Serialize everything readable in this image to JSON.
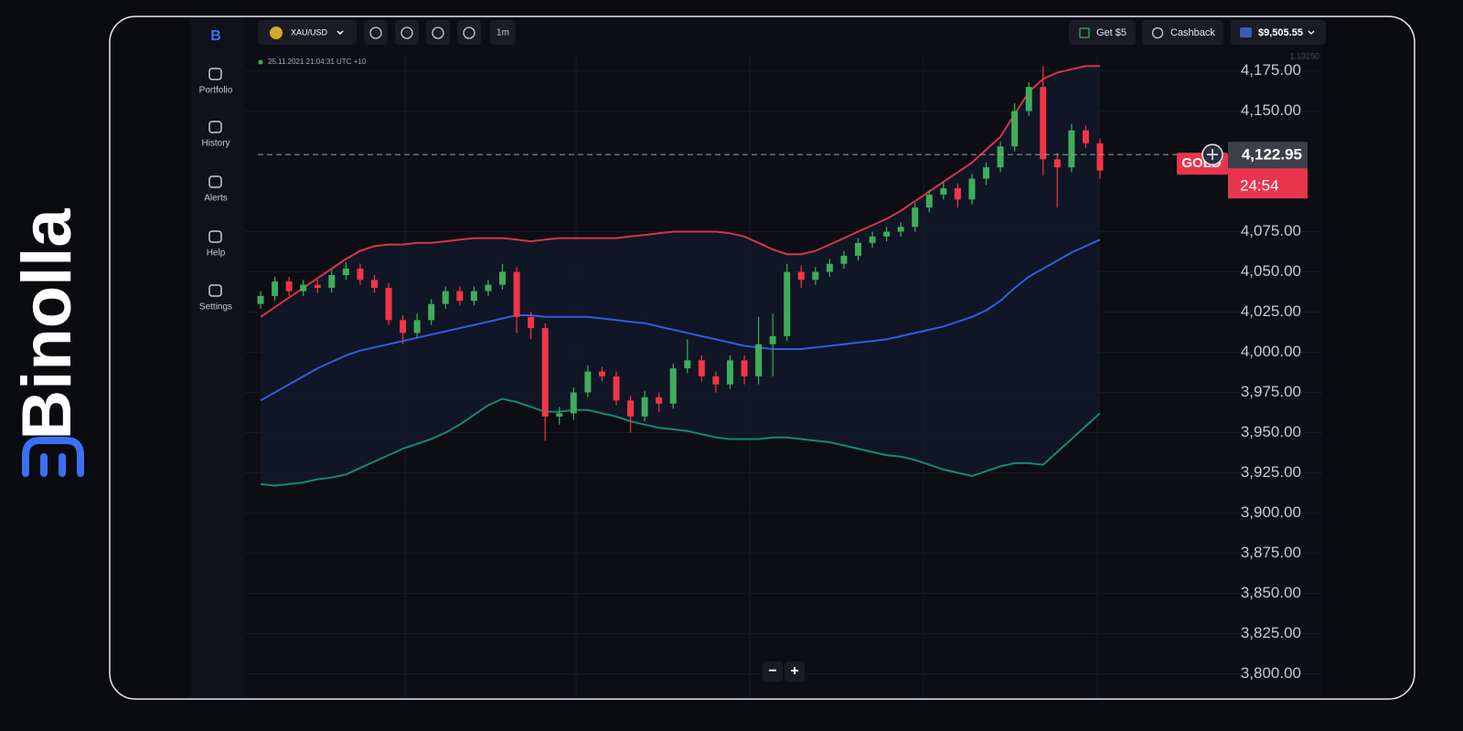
{
  "brand": "Binolla",
  "sidebar": [
    "Portfolio",
    "History",
    "Alerts",
    "Help",
    "Settings"
  ],
  "toolbar": {
    "pair": "XAU/USD",
    "timeframe": "1m",
    "bonus": "Get $5",
    "cashback": "Cashback",
    "balance": "$9,505.55"
  },
  "zoom": [
    "−",
    "+"
  ],
  "chart_data": {
    "type": "candlestick",
    "timestamp": "25.11.2021 21:04:31 UTC +10",
    "scale_note": "1.13150",
    "asset": "GOLD",
    "price": {
      "value": 4122.95,
      "label": "4,122.95"
    },
    "timer": "24:54",
    "ylim": [
      3786,
      4185
    ],
    "yticks": [
      {
        "value": 3800,
        "label": "3,800.00"
      },
      {
        "value": 3825,
        "label": "3,825.00"
      },
      {
        "value": 3850,
        "label": "3,850.00"
      },
      {
        "value": 3875,
        "label": "3,875.00"
      },
      {
        "value": 3900,
        "label": "3,900.00"
      },
      {
        "value": 3925,
        "label": "3,925.00"
      },
      {
        "value": 3950,
        "label": "3,950.00"
      },
      {
        "value": 3975,
        "label": "3,975.00"
      },
      {
        "value": 4000,
        "label": "4,000.00"
      },
      {
        "value": 4025,
        "label": "4,025.00"
      },
      {
        "value": 4050,
        "label": "4,050.00"
      },
      {
        "value": 4075,
        "label": "4,075.00"
      },
      {
        "value": 4150,
        "label": "4,150.00"
      },
      {
        "value": 4175,
        "label": "4,175.00"
      }
    ],
    "grid": true,
    "up_color": "#3fae5a",
    "down_color": "#f23645",
    "open": [
      4030,
      4035,
      4044,
      4038,
      4042,
      4040,
      4048,
      4052,
      4045,
      4040,
      4020,
      4012,
      4020,
      4030,
      4038,
      4032,
      4038,
      4042,
      4050,
      4022,
      4015,
      3960,
      3962,
      3975,
      3988,
      3985,
      3970,
      3960,
      3972,
      3968,
      3990,
      3995,
      3985,
      3980,
      3995,
      3985,
      4005,
      4010,
      4050,
      4045,
      4050,
      4055,
      4060,
      4068,
      4072,
      4075,
      4078,
      4090,
      4098,
      4102,
      4095,
      4108,
      4115,
      4128,
      4150,
      4165,
      4120,
      4115,
      4138,
      4130
    ],
    "high": [
      4038,
      4047,
      4047,
      4045,
      4045,
      4051,
      4056,
      4055,
      4048,
      4043,
      4023,
      4024,
      4033,
      4041,
      4041,
      4041,
      4045,
      4055,
      4053,
      4025,
      4018,
      3966,
      3978,
      3992,
      3991,
      3988,
      3973,
      3976,
      3975,
      3993,
      4008,
      3998,
      3988,
      3998,
      3998,
      4022,
      4024,
      4055,
      4054,
      4053,
      4058,
      4063,
      4071,
      4075,
      4078,
      4081,
      4093,
      4101,
      4106,
      4105,
      4111,
      4118,
      4131,
      4155,
      4168,
      4178,
      4124,
      4142,
      4141,
      4133
    ],
    "low": [
      4027,
      4032,
      4035,
      4035,
      4037,
      4037,
      4045,
      4042,
      4037,
      4017,
      4005,
      4009,
      4017,
      4027,
      4029,
      4029,
      4035,
      4039,
      4012,
      4008,
      3945,
      3955,
      3958,
      3972,
      3982,
      3967,
      3950,
      3957,
      3963,
      3965,
      3987,
      3982,
      3975,
      3977,
      3980,
      3980,
      3985,
      4007,
      4040,
      4042,
      4047,
      4052,
      4057,
      4065,
      4069,
      4072,
      4075,
      4087,
      4095,
      4090,
      4092,
      4104,
      4112,
      4125,
      4147,
      4110,
      4090,
      4112,
      4127,
      4108
    ],
    "close": [
      4035,
      4044,
      4038,
      4042,
      4040,
      4048,
      4052,
      4045,
      4040,
      4020,
      4012,
      4020,
      4030,
      4038,
      4032,
      4038,
      4042,
      4050,
      4022,
      4015,
      3960,
      3962,
      3975,
      3988,
      3985,
      3970,
      3960,
      3972,
      3968,
      3990,
      3995,
      3985,
      3980,
      3995,
      3985,
      4005,
      4010,
      4050,
      4045,
      4050,
      4055,
      4060,
      4068,
      4072,
      4075,
      4078,
      4090,
      4098,
      4102,
      4095,
      4108,
      4115,
      4128,
      4150,
      4165,
      4120,
      4115,
      4138,
      4130,
      4113
    ],
    "bands": [
      {
        "color": "#d9344a",
        "values": [
          4022,
          4028,
          4034,
          4040,
          4046,
          4052,
          4058,
          4063,
          4066,
          4067,
          4067,
          4068,
          4068,
          4069,
          4070,
          4071,
          4071,
          4071,
          4070,
          4069,
          4070,
          4071,
          4071,
          4071,
          4071,
          4071,
          4072,
          4073,
          4074,
          4075,
          4075,
          4075,
          4075,
          4074,
          4072,
          4068,
          4064,
          4061,
          4061,
          4063,
          4067,
          4071,
          4075,
          4079,
          4083,
          4088,
          4094,
          4100,
          4106,
          4112,
          4118,
          4126,
          4134,
          4148,
          4162,
          4170,
          4174,
          4176,
          4178,
          4178
        ]
      },
      {
        "color": "#2f5fe0",
        "values": [
          3970,
          3975,
          3980,
          3985,
          3990,
          3994,
          3998,
          4001,
          4003,
          4005,
          4007,
          4009,
          4011,
          4013,
          4015,
          4017,
          4019,
          4021,
          4023,
          4023,
          4022,
          4022,
          4022,
          4022,
          4021,
          4020,
          4019,
          4018,
          4016,
          4014,
          4012,
          4010,
          4008,
          4006,
          4004,
          4003,
          4002,
          4002,
          4002,
          4003,
          4004,
          4005,
          4006,
          4007,
          4008,
          4010,
          4012,
          4014,
          4016,
          4019,
          4022,
          4026,
          4032,
          4040,
          4047,
          4052,
          4057,
          4062,
          4066,
          4070
        ]
      },
      {
        "color": "#138a72",
        "values": [
          3918,
          3917,
          3918,
          3919,
          3921,
          3922,
          3924,
          3928,
          3932,
          3936,
          3940,
          3943,
          3946,
          3950,
          3955,
          3961,
          3967,
          3971,
          3969,
          3966,
          3963,
          3963,
          3964,
          3964,
          3962,
          3960,
          3957,
          3955,
          3953,
          3952,
          3951,
          3949,
          3947,
          3946,
          3946,
          3946,
          3947,
          3947,
          3946,
          3945,
          3944,
          3942,
          3940,
          3938,
          3936,
          3935,
          3933,
          3930,
          3927,
          3925,
          3923,
          3926,
          3929,
          3931,
          3931,
          3930,
          3938,
          3946,
          3954,
          3962
        ]
      }
    ]
  }
}
